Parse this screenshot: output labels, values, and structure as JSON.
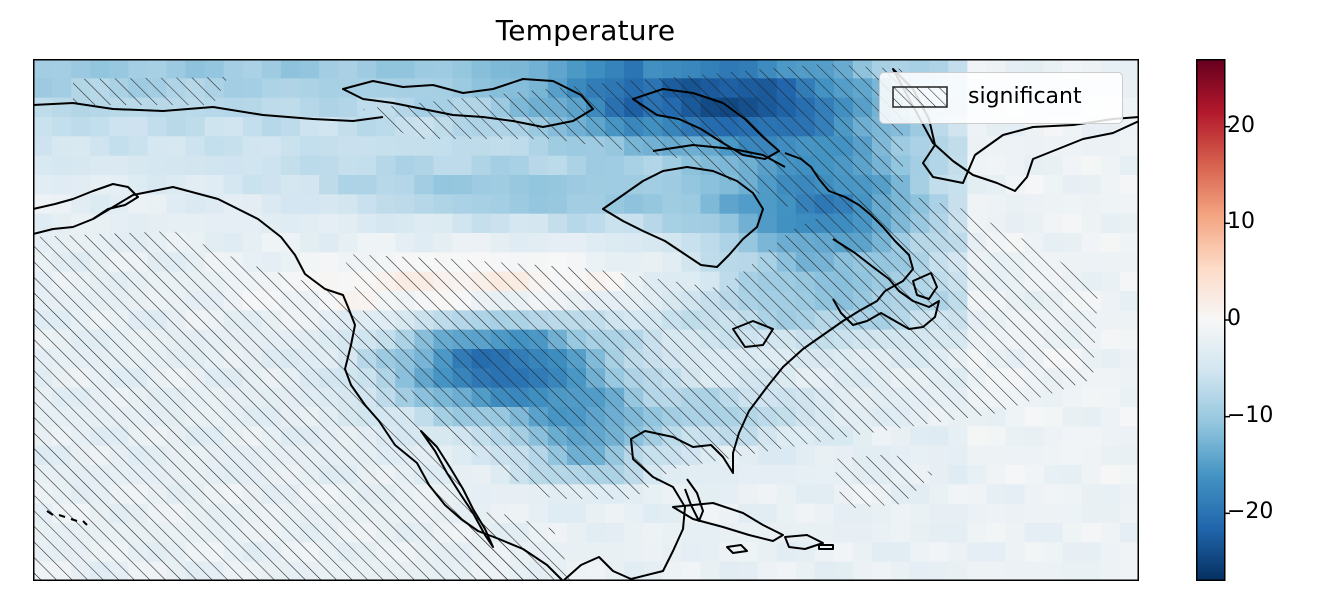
{
  "chart_data": {
    "type": "heatmap",
    "title": "Temperature",
    "map": "North America (approx. 0°N–85°N, 180°W–10°W), gridded temperature anomaly with coastlines",
    "colormap": "RdBu_r",
    "colorbar": {
      "range": [
        -27,
        27
      ],
      "ticks": [
        -20,
        -10,
        0,
        10,
        20
      ],
      "tick_labels": [
        "−20",
        "−10",
        "0",
        "10",
        "20"
      ]
    },
    "legend": {
      "label": "significant",
      "placement": "top-right",
      "pattern": "diagonal-hatch"
    },
    "grid": false,
    "description_values": {
      "arctic_canada_hudson_bay": -22,
      "great_plains_midwest": -21,
      "central_canada_band": -8,
      "eastern_pacific_ocean": -3,
      "tropical_central_america": -2,
      "greenland_east": 0
    }
  }
}
